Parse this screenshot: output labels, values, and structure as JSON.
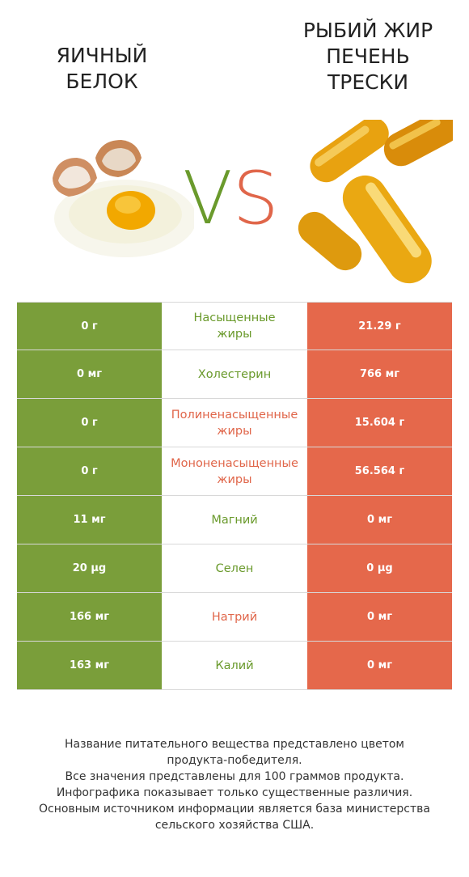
{
  "header": {
    "left_title": "ЯИЧНЫЙ\nБЕЛОК",
    "right_title": "РЫБИЙ ЖИР\nПЕЧЕНЬ\nТРЕСКИ",
    "vs_v": "V",
    "vs_s": "S"
  },
  "colors": {
    "left_product": "#7a9e3a",
    "right_product": "#e5684b",
    "winner_green": "#6a9a2c",
    "winner_red": "#e0664a"
  },
  "rows": [
    {
      "left": "0 г",
      "label": "Насыщенные\nжиры",
      "right": "21.29 г",
      "winner": "green"
    },
    {
      "left": "0 мг",
      "label": "Холестерин",
      "right": "766 мг",
      "winner": "green"
    },
    {
      "left": "0 г",
      "label": "Полиненасыщенные\nжиры",
      "right": "15.604 г",
      "winner": "red"
    },
    {
      "left": "0 г",
      "label": "Мононенасыщенные\nжиры",
      "right": "56.564 г",
      "winner": "red"
    },
    {
      "left": "11 мг",
      "label": "Магний",
      "right": "0 мг",
      "winner": "green"
    },
    {
      "left": "20 µg",
      "label": "Селен",
      "right": "0 µg",
      "winner": "green"
    },
    {
      "left": "166 мг",
      "label": "Натрий",
      "right": "0 мг",
      "winner": "red"
    },
    {
      "left": "163 мг",
      "label": "Калий",
      "right": "0 мг",
      "winner": "green"
    }
  ],
  "footer": {
    "text": "Название питательного вещества представлено цветом\nпродукта-победителя.\nВсе значения представлены для 100 граммов продукта.\nИнфографика показывает только существенные различия.\nОсновным источником информации является база министерства\nсельского хозяйства США."
  }
}
